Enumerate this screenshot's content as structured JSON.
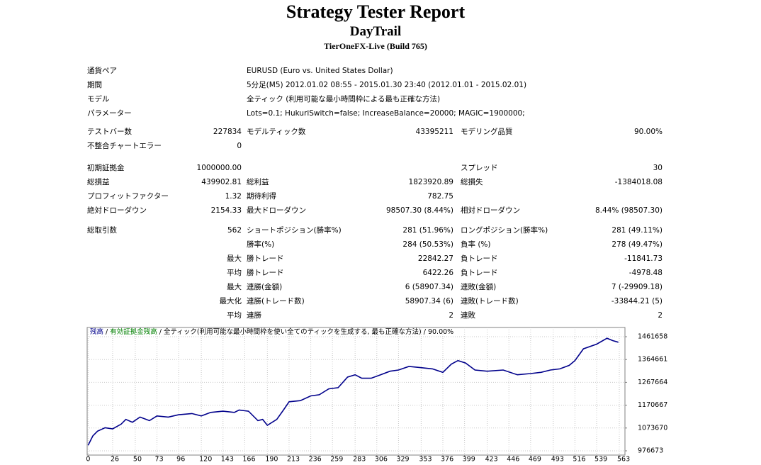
{
  "header": {
    "title": "Strategy Tester Report",
    "subtitle": "DayTrail",
    "server": "TierOneFX-Live (Build 765)"
  },
  "info": [
    {
      "label": "通貨ペア",
      "value": "EURUSD (Euro vs. United States Dollar)"
    },
    {
      "label": "期間",
      "value": "5分足(M5) 2012.01.02 08:55 - 2015.01.30 23:40 (2012.01.01 - 2015.02.01)"
    },
    {
      "label": "モデル",
      "value": "全ティック (利用可能な最小時間枠による最も正確な方法)"
    },
    {
      "label": "パラメーター",
      "value": "Lots=0.1; HukuriSwitch=false; IncreaseBalance=20000; MAGIC=1900000;"
    }
  ],
  "stats": [
    [
      [
        "テストバー数",
        "227834",
        "モデルティック数",
        "43395211",
        "モデリング品質",
        "90.00%"
      ],
      [
        "不整合チャートエラー",
        "0",
        null,
        null,
        null,
        null
      ]
    ],
    [
      [
        "初期証拠金",
        "1000000.00",
        null,
        null,
        "スプレッド",
        "30"
      ],
      [
        "総損益",
        "439902.81",
        "総利益",
        "1823920.89",
        "総損失",
        "-1384018.08"
      ],
      [
        "プロフィットファクター",
        "1.32",
        "期待利得",
        "782.75",
        null,
        null
      ],
      [
        "絶対ドローダウン",
        "2154.33",
        "最大ドローダウン",
        "98507.30 (8.44%)",
        "相対ドローダウン",
        "8.44% (98507.30)"
      ]
    ],
    [
      [
        "総取引数",
        "562",
        "ショートポジション(勝率%)",
        "281 (51.96%)",
        "ロングポジション(勝率%)",
        "281 (49.11%)"
      ],
      [
        null,
        null,
        "勝率(%)",
        "284 (50.53%)",
        "負率 (%)",
        "278 (49.47%)"
      ],
      [
        null,
        "最大",
        "勝トレード",
        "22842.27",
        "負トレード",
        "-11841.73"
      ],
      [
        null,
        "平均",
        "勝トレード",
        "6422.26",
        "負トレード",
        "-4978.48"
      ],
      [
        null,
        "最大",
        "連勝(金額)",
        "6 (58907.34)",
        "連敗(金額)",
        "7 (-29909.18)"
      ],
      [
        null,
        "最大化",
        "連勝(トレード数)",
        "58907.34 (6)",
        "連敗(トレード数)",
        "-33844.21 (5)"
      ],
      [
        null,
        "平均",
        "連勝",
        "2",
        "連敗",
        "2"
      ]
    ]
  ],
  "chart_data": {
    "type": "line",
    "legend": {
      "separator": "/",
      "items": [
        {
          "text": "有効証拠金残高",
          "color": "#008000"
        },
        {
          "text": "全ティック(利用可能な最小時間枠を使い全てのティックを生成する, 最も正確な方法)",
          "color": "#000000"
        },
        {
          "text": "90.00%",
          "color": "#000000"
        }
      ]
    },
    "x": [
      0,
      5,
      10,
      18,
      26,
      35,
      40,
      47,
      55,
      65,
      73,
      85,
      96,
      110,
      120,
      130,
      143,
      155,
      160,
      170,
      180,
      185,
      190,
      200,
      207,
      213,
      225,
      236,
      245,
      255,
      265,
      275,
      283,
      290,
      300,
      310,
      320,
      329,
      340,
      353,
      365,
      376,
      385,
      392,
      400,
      410,
      423,
      440,
      455,
      469,
      480,
      490,
      500,
      510,
      516,
      525,
      539,
      550,
      556,
      562
    ],
    "series": [
      {
        "name": "残高",
        "color": "#00008b",
        "values": [
          1000000,
          1040000,
          1060000,
          1075000,
          1070000,
          1090000,
          1110000,
          1098000,
          1120000,
          1105000,
          1125000,
          1120000,
          1130000,
          1135000,
          1125000,
          1140000,
          1145000,
          1140000,
          1150000,
          1145000,
          1105000,
          1110000,
          1085000,
          1110000,
          1150000,
          1185000,
          1190000,
          1210000,
          1215000,
          1240000,
          1245000,
          1290000,
          1300000,
          1285000,
          1285000,
          1300000,
          1315000,
          1320000,
          1335000,
          1330000,
          1325000,
          1310000,
          1345000,
          1360000,
          1350000,
          1320000,
          1315000,
          1320000,
          1300000,
          1305000,
          1310000,
          1320000,
          1325000,
          1340000,
          1360000,
          1410000,
          1430000,
          1455000,
          1445000,
          1438000
        ]
      }
    ],
    "xlim": [
      -1,
      569
    ],
    "ylim": [
      958600,
      1500800
    ],
    "xticks": [
      0,
      26,
      50,
      73,
      96,
      120,
      143,
      166,
      190,
      213,
      236,
      259,
      283,
      306,
      329,
      353,
      376,
      399,
      423,
      446,
      469,
      493,
      516,
      539,
      563
    ],
    "yticks": [
      976673,
      1073670,
      1170667,
      1267664,
      1364661,
      1461658
    ],
    "grid": true
  }
}
